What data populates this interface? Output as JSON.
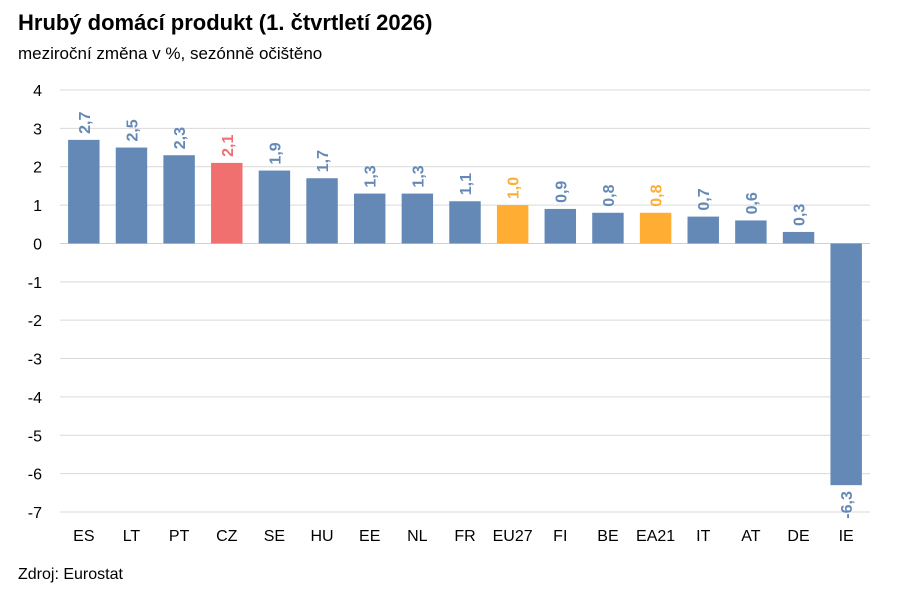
{
  "chart_data": {
    "type": "bar",
    "title": "Hrubý domácí produkt (1. čtvrtletí 2026)",
    "subtitle": "meziroční změna v %, sezónně očištěno",
    "source": "Zdroj: Eurostat",
    "categories": [
      "ES",
      "LT",
      "PT",
      "CZ",
      "SE",
      "HU",
      "EE",
      "NL",
      "FR",
      "EU27",
      "FI",
      "BE",
      "EA21",
      "IT",
      "AT",
      "DE",
      "IE"
    ],
    "values": [
      2.7,
      2.5,
      2.3,
      2.1,
      1.9,
      1.7,
      1.3,
      1.3,
      1.1,
      1.0,
      0.9,
      0.8,
      0.8,
      0.7,
      0.6,
      0.3,
      -6.3
    ],
    "value_labels": [
      "2,7",
      "2,5",
      "2,3",
      "2,1",
      "1,9",
      "1,7",
      "1,3",
      "1,3",
      "1,1",
      "1,0",
      "0,9",
      "0,8",
      "0,8",
      "0,7",
      "0,6",
      "0,3",
      "-6,3"
    ],
    "highlight": {
      "CZ": "#f07070",
      "EU27": "#ffad33",
      "EA21": "#ffad33"
    },
    "default_color": "#6489b6",
    "ylim": [
      -7,
      4
    ],
    "yticks": [
      4,
      3,
      2,
      1,
      0,
      -1,
      -2,
      -3,
      -4,
      -5,
      -6,
      -7
    ],
    "grid": true,
    "xlabel": "",
    "ylabel": ""
  }
}
